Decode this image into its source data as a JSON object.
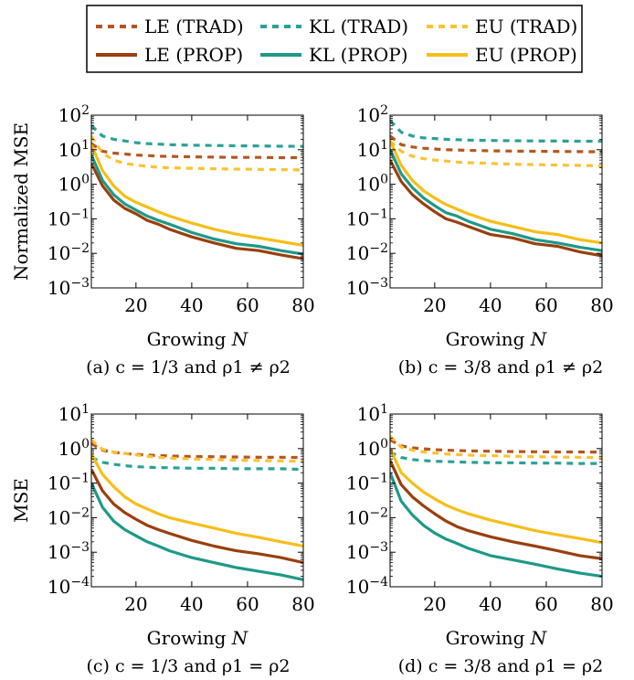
{
  "legend": {
    "entries": [
      {
        "label": "LE (TRAD)",
        "color": "#b5561e",
        "style": "dashed"
      },
      {
        "label": "KL (TRAD)",
        "color": "#2aa197",
        "style": "dashed"
      },
      {
        "label": "EU (TRAD)",
        "color": "#fbc232",
        "style": "dashed"
      },
      {
        "label": "LE (PROP)",
        "color": "#9a3f0e",
        "style": "solid"
      },
      {
        "label": "KL (PROP)",
        "color": "#1e9988",
        "style": "solid"
      },
      {
        "label": "EU (PROP)",
        "color": "#f6be18",
        "style": "solid"
      }
    ]
  },
  "chart_data": [
    {
      "type": "line",
      "id": "a",
      "caption": "(a) c = 1/3 and ρ1 ≠ ρ2",
      "xlabel": "Growing N",
      "ylabel": "Normalized MSE",
      "xlim": [
        4,
        80
      ],
      "ylim_log10": [
        -3,
        2
      ],
      "xticks": [
        "20",
        "40",
        "60",
        "80"
      ],
      "yticks": [
        "10^2",
        "10^1",
        "10^0",
        "10^-1",
        "10^-2",
        "10^-3"
      ],
      "x": [
        4,
        8,
        12,
        16,
        20,
        24,
        28,
        32,
        40,
        48,
        56,
        64,
        72,
        80
      ],
      "series": [
        {
          "name": "LE (TRAD)",
          "values": [
            15,
            9,
            8,
            7.5,
            7,
            6.8,
            6.5,
            6.4,
            6.2,
            6.1,
            6.0,
            6.0,
            5.9,
            5.9
          ]
        },
        {
          "name": "KL (TRAD)",
          "values": [
            50,
            25,
            20,
            18,
            16,
            15,
            14.5,
            14,
            13.5,
            13.2,
            13,
            12.8,
            12.6,
            12.5
          ]
        },
        {
          "name": "EU (TRAD)",
          "values": [
            25,
            8,
            5,
            4,
            3.6,
            3.3,
            3.1,
            3.0,
            2.9,
            2.8,
            2.75,
            2.7,
            2.65,
            2.6
          ]
        },
        {
          "name": "LE (PROP)",
          "values": [
            4,
            0.9,
            0.35,
            0.2,
            0.14,
            0.09,
            0.07,
            0.05,
            0.03,
            0.02,
            0.014,
            0.012,
            0.009,
            0.007
          ]
        },
        {
          "name": "KL (PROP)",
          "values": [
            7,
            1.3,
            0.5,
            0.27,
            0.18,
            0.12,
            0.09,
            0.07,
            0.04,
            0.026,
            0.019,
            0.016,
            0.012,
            0.0095
          ]
        },
        {
          "name": "EU (PROP)",
          "values": [
            14,
            2.5,
            0.9,
            0.45,
            0.3,
            0.22,
            0.16,
            0.12,
            0.075,
            0.05,
            0.036,
            0.028,
            0.022,
            0.017
          ]
        }
      ]
    },
    {
      "type": "line",
      "id": "b",
      "caption": "(b) c = 3/8 and ρ1 ≠ ρ2",
      "xlabel": "Growing N",
      "ylabel": "",
      "xlim": [
        4,
        80
      ],
      "ylim_log10": [
        -3,
        2
      ],
      "xticks": [
        "20",
        "40",
        "60",
        "80"
      ],
      "yticks": [
        "10^2",
        "10^1",
        "10^0",
        "10^-1",
        "10^-2",
        "10^-3"
      ],
      "x": [
        4,
        8,
        12,
        16,
        20,
        24,
        28,
        32,
        40,
        48,
        56,
        64,
        72,
        80
      ],
      "series": [
        {
          "name": "LE (TRAD)",
          "values": [
            25,
            14,
            12,
            11,
            10.5,
            10,
            9.8,
            9.6,
            9.3,
            9.1,
            9.0,
            8.9,
            8.8,
            8.7
          ]
        },
        {
          "name": "KL (TRAD)",
          "values": [
            70,
            32,
            25,
            22,
            21,
            20,
            19.5,
            19,
            18.5,
            18.2,
            18,
            17.8,
            17.6,
            17.5
          ]
        },
        {
          "name": "EU (TRAD)",
          "values": [
            18,
            9,
            6.5,
            5.5,
            5,
            4.7,
            4.4,
            4.2,
            4.0,
            3.8,
            3.7,
            3.6,
            3.5,
            3.4
          ]
        },
        {
          "name": "LE (PROP)",
          "values": [
            5,
            1.2,
            0.5,
            0.27,
            0.16,
            0.1,
            0.08,
            0.06,
            0.035,
            0.028,
            0.019,
            0.016,
            0.011,
            0.0085
          ]
        },
        {
          "name": "KL (PROP)",
          "values": [
            10,
            2.0,
            0.8,
            0.4,
            0.24,
            0.15,
            0.12,
            0.085,
            0.05,
            0.037,
            0.025,
            0.02,
            0.015,
            0.012
          ]
        },
        {
          "name": "EU (PROP)",
          "values": [
            18,
            3.5,
            1.3,
            0.65,
            0.4,
            0.26,
            0.19,
            0.14,
            0.085,
            0.06,
            0.042,
            0.035,
            0.025,
            0.02
          ]
        }
      ]
    },
    {
      "type": "line",
      "id": "c",
      "caption": "(c) c = 1/3 and ρ1 = ρ2",
      "xlabel": "Growing N",
      "ylabel": "MSE",
      "xlim": [
        4,
        80
      ],
      "ylim_log10": [
        -4,
        1
      ],
      "xticks": [
        "20",
        "40",
        "60",
        "80"
      ],
      "yticks": [
        "10^1",
        "10^0",
        "10^-1",
        "10^-2",
        "10^-3",
        "10^-4"
      ],
      "x": [
        4,
        8,
        12,
        16,
        20,
        24,
        28,
        32,
        40,
        48,
        56,
        64,
        72,
        80
      ],
      "series": [
        {
          "name": "LE (TRAD)",
          "values": [
            1.4,
            0.9,
            0.78,
            0.72,
            0.68,
            0.65,
            0.63,
            0.61,
            0.59,
            0.58,
            0.57,
            0.56,
            0.56,
            0.55
          ]
        },
        {
          "name": "KL (TRAD)",
          "values": [
            0.55,
            0.4,
            0.35,
            0.32,
            0.3,
            0.29,
            0.28,
            0.28,
            0.27,
            0.27,
            0.26,
            0.26,
            0.26,
            0.25
          ]
        },
        {
          "name": "EU (TRAD)",
          "values": [
            1.8,
            0.95,
            0.8,
            0.72,
            0.66,
            0.6,
            0.56,
            0.53,
            0.5,
            0.48,
            0.46,
            0.45,
            0.44,
            0.43
          ]
        },
        {
          "name": "LE (PROP)",
          "values": [
            0.25,
            0.06,
            0.025,
            0.014,
            0.009,
            0.006,
            0.0045,
            0.0035,
            0.0022,
            0.0015,
            0.0011,
            0.0009,
            0.0007,
            0.0005
          ]
        },
        {
          "name": "KL (PROP)",
          "values": [
            0.1,
            0.02,
            0.008,
            0.0045,
            0.003,
            0.002,
            0.0015,
            0.0011,
            0.0007,
            0.0005,
            0.00036,
            0.00028,
            0.00022,
            0.00016
          ]
        },
        {
          "name": "EU (PROP)",
          "values": [
            0.7,
            0.18,
            0.08,
            0.04,
            0.025,
            0.018,
            0.013,
            0.01,
            0.007,
            0.005,
            0.0035,
            0.0027,
            0.002,
            0.0015
          ]
        }
      ]
    },
    {
      "type": "line",
      "id": "d",
      "caption": "(d) c = 3/8 and ρ1 = ρ2",
      "xlabel": "Growing N",
      "ylabel": "",
      "xlim": [
        4,
        80
      ],
      "ylim_log10": [
        -4,
        1
      ],
      "xticks": [
        "20",
        "40",
        "60",
        "80"
      ],
      "yticks": [
        "10^1",
        "10^0",
        "10^-1",
        "10^-2",
        "10^-3",
        "10^-4"
      ],
      "x": [
        4,
        8,
        12,
        16,
        20,
        24,
        28,
        32,
        40,
        48,
        56,
        64,
        72,
        80
      ],
      "series": [
        {
          "name": "LE (TRAD)",
          "values": [
            1.8,
            1.2,
            1.05,
            0.98,
            0.93,
            0.9,
            0.88,
            0.86,
            0.84,
            0.82,
            0.81,
            0.8,
            0.8,
            0.79
          ]
        },
        {
          "name": "KL (TRAD)",
          "values": [
            0.8,
            0.55,
            0.48,
            0.45,
            0.43,
            0.42,
            0.41,
            0.4,
            0.39,
            0.39,
            0.38,
            0.38,
            0.37,
            0.37
          ]
        },
        {
          "name": "EU (TRAD)",
          "values": [
            2.3,
            1.1,
            0.9,
            0.8,
            0.74,
            0.7,
            0.67,
            0.65,
            0.62,
            0.6,
            0.58,
            0.57,
            0.56,
            0.55
          ]
        },
        {
          "name": "LE (PROP)",
          "values": [
            0.45,
            0.09,
            0.04,
            0.022,
            0.013,
            0.008,
            0.0055,
            0.0042,
            0.0028,
            0.002,
            0.0015,
            0.0011,
            0.0008,
            0.00065
          ]
        },
        {
          "name": "KL (PROP)",
          "values": [
            0.2,
            0.03,
            0.012,
            0.006,
            0.0036,
            0.0024,
            0.0018,
            0.0013,
            0.0008,
            0.0006,
            0.00045,
            0.00033,
            0.00025,
            0.0002
          ]
        },
        {
          "name": "EU (PROP)",
          "values": [
            1.0,
            0.2,
            0.1,
            0.055,
            0.035,
            0.023,
            0.017,
            0.013,
            0.0085,
            0.006,
            0.0042,
            0.0032,
            0.0025,
            0.0019
          ]
        }
      ]
    }
  ]
}
